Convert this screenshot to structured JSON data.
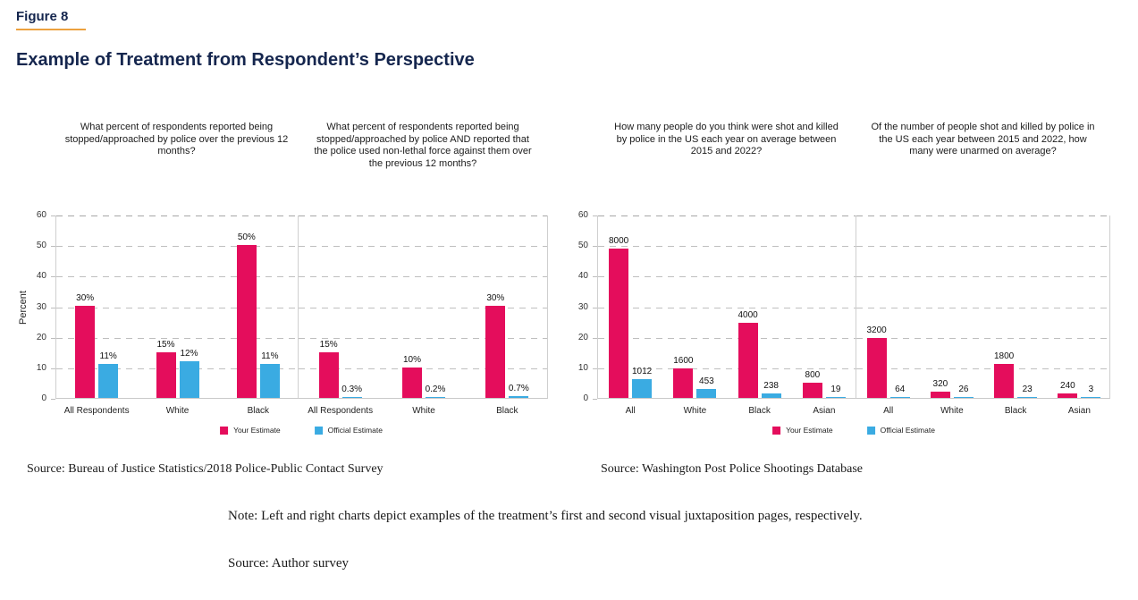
{
  "figure": {
    "label": "Figure 8",
    "title": "Example of Treatment from Respondent’s Perspective"
  },
  "colors": {
    "your_estimate": "#E40D5C",
    "official_estimate": "#3AABE2",
    "title_navy": "#15264E",
    "accent_underline": "#ECA13E"
  },
  "legend": {
    "items": [
      {
        "label": "Your Estimate",
        "color_key": "your_estimate"
      },
      {
        "label": "Official Estimate",
        "color_key": "official_estimate"
      }
    ]
  },
  "sources": [
    "Source: Bureau of Justice Statistics/2018 Police-Public Contact Survey",
    "Source: Washington Post Police Shootings Database"
  ],
  "footnotes": {
    "note": "Note: Left and right charts depict examples of the treatment’s first and second visual juxtaposition pages, respectively.",
    "source": "Source: Author survey"
  },
  "chart_data": {
    "type": "bar",
    "axis": {
      "ymin": 0,
      "ymax": 60,
      "ticks": [
        0,
        10,
        20,
        30,
        40,
        50,
        60
      ],
      "ylabel": "Percent",
      "grid": "dashed"
    },
    "series_names": [
      "Your Estimate",
      "Official Estimate"
    ],
    "panels": [
      {
        "group": 0,
        "question": "What percent of respondents reported being stopped/approached by police over the previous 12 months?",
        "categories": [
          "All Respondents",
          "White",
          "Black"
        ],
        "series": [
          {
            "name": "Your Estimate",
            "values": [
              30,
              15,
              50
            ],
            "labels": [
              "30%",
              "15%",
              "50%"
            ],
            "plot_values": [
              30,
              15,
              50
            ]
          },
          {
            "name": "Official Estimate",
            "values": [
              11,
              12,
              11
            ],
            "labels": [
              "11%",
              "12%",
              "11%"
            ],
            "plot_values": [
              11,
              12,
              11
            ]
          }
        ]
      },
      {
        "group": 0,
        "question": "What percent of respondents reported being stopped/approached by police AND reported that the police used non-lethal force against them over the previous 12 months?",
        "categories": [
          "All Respondents",
          "White",
          "Black"
        ],
        "series": [
          {
            "name": "Your Estimate",
            "values": [
              15,
              10,
              30
            ],
            "labels": [
              "15%",
              "10%",
              "30%"
            ],
            "plot_values": [
              15,
              10,
              30
            ]
          },
          {
            "name": "Official Estimate",
            "values": [
              0.3,
              0.2,
              0.7
            ],
            "labels": [
              "0.3%",
              "0.2%",
              "0.7%"
            ],
            "plot_values": [
              0.3,
              0.2,
              0.7
            ]
          }
        ]
      },
      {
        "group": 1,
        "question": "How many people do you think were shot and killed by police in the US each year on average between 2015 and 2022?",
        "categories": [
          "All",
          "White",
          "Black",
          "Asian"
        ],
        "series": [
          {
            "name": "Your Estimate",
            "values": [
              8000,
              1600,
              4000,
              800
            ],
            "labels": [
              "8000",
              "1600",
              "4000",
              "800"
            ],
            "plot_values": [
              49,
              9.8,
              24.5,
              4.9
            ]
          },
          {
            "name": "Official Estimate",
            "values": [
              1012,
              453,
              238,
              19
            ],
            "labels": [
              "1012",
              "453",
              "238",
              "19"
            ],
            "plot_values": [
              6.2,
              2.8,
              1.5,
              0.4
            ]
          }
        ]
      },
      {
        "group": 1,
        "question": "Of the number of people shot and killed by police in the US each year between 2015 and 2022, how many were unarmed on average?",
        "categories": [
          "All",
          "White",
          "Black",
          "Asian"
        ],
        "series": [
          {
            "name": "Your Estimate",
            "values": [
              3200,
              320,
              1800,
              240
            ],
            "labels": [
              "3200",
              "320",
              "1800",
              "240"
            ],
            "plot_values": [
              19.6,
              2,
              11,
              1.5
            ]
          },
          {
            "name": "Official Estimate",
            "values": [
              64,
              26,
              23,
              3
            ],
            "labels": [
              "64",
              "26",
              "23",
              "3"
            ],
            "plot_values": [
              0.4,
              0.25,
              0.25,
              0.1
            ]
          }
        ]
      }
    ]
  }
}
